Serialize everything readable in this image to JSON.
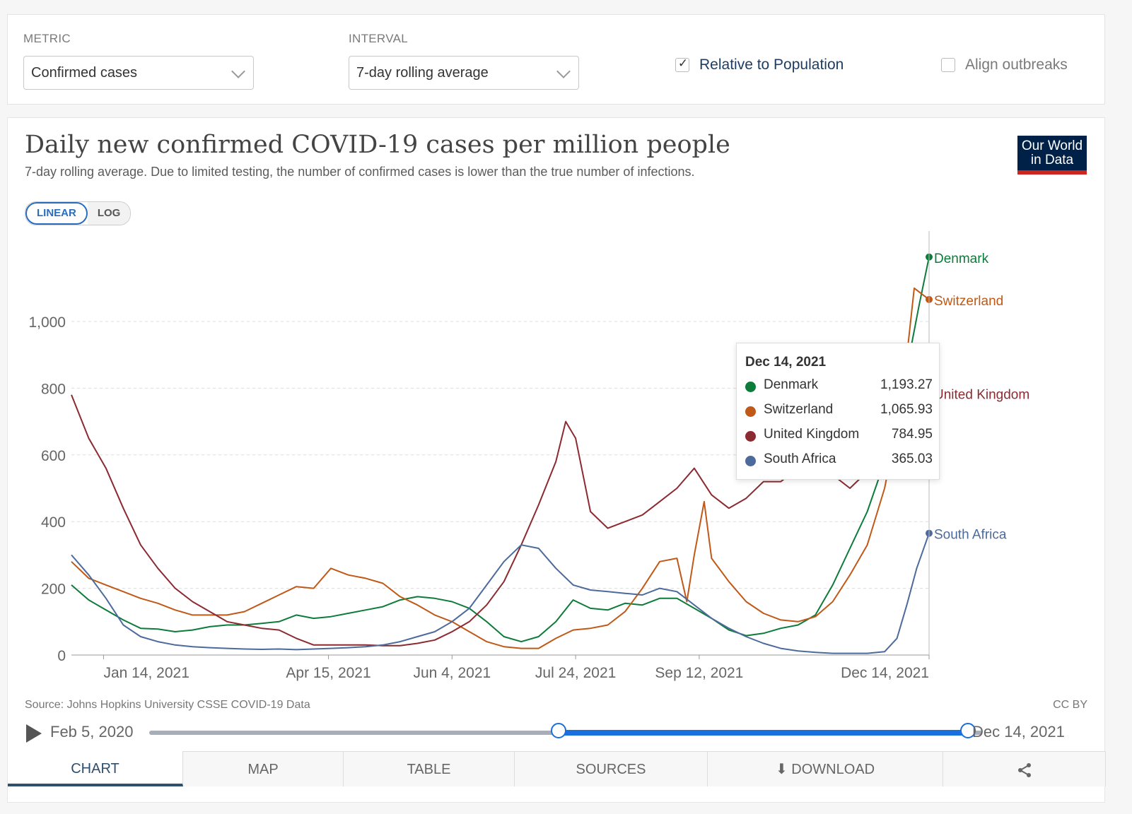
{
  "controls": {
    "metric_label": "METRIC",
    "metric_value": "Confirmed cases",
    "interval_label": "INTERVAL",
    "interval_value": "7-day rolling average",
    "relative_label": "Relative to Population",
    "relative_checked": "✓",
    "align_label": "Align outbreaks"
  },
  "header": {
    "title": "Daily new confirmed COVID-19 cases per million people",
    "subtitle": "7-day rolling average. Due to limited testing, the number of confirmed cases is lower than the true number of infections.",
    "logo_line1": "Our World",
    "logo_line2": "in Data"
  },
  "scale": {
    "linear": "LINEAR",
    "log": "LOG"
  },
  "tooltip": {
    "date": "Dec 14, 2021",
    "rows": [
      {
        "name": "Denmark",
        "value": "1,193.27",
        "color": "#0d7b3a"
      },
      {
        "name": "Switzerland",
        "value": "1,065.93",
        "color": "#c05917"
      },
      {
        "name": "United Kingdom",
        "value": "784.95",
        "color": "#8c2a31"
      },
      {
        "name": "South Africa",
        "value": "365.03",
        "color": "#4c6a9c"
      }
    ]
  },
  "footer": {
    "source": "Source: Johns Hopkins University CSSE COVID-19 Data",
    "license": "CC BY"
  },
  "timeline": {
    "start_label": "Feb 5, 2020",
    "end_label": "Dec 14, 2021",
    "window_start_fraction": 0.5,
    "window_end_fraction": 1.0
  },
  "tabs": {
    "chart": "CHART",
    "map": "MAP",
    "table": "TABLE",
    "sources": "SOURCES",
    "download": "DOWNLOAD"
  },
  "chart_data": {
    "type": "line",
    "title": "Daily new confirmed COVID-19 cases per million people",
    "subtitle": "7-day rolling average. Due to limited testing, the number of confirmed cases is lower than the true number of infections.",
    "x_range": [
      "2021-01-01",
      "2021-12-14"
    ],
    "ylim": [
      0,
      1250
    ],
    "y_ticks": [
      0,
      200,
      400,
      600,
      800,
      1000
    ],
    "y_tick_labels": [
      "0",
      "200",
      "400",
      "600",
      "800",
      "1,000"
    ],
    "x_ticks": [
      "2021-01-14",
      "2021-04-15",
      "2021-06-04",
      "2021-07-24",
      "2021-09-12",
      "2021-12-14"
    ],
    "x_tick_labels": [
      "Jan 14, 2021",
      "Apr 15, 2021",
      "Jun 4, 2021",
      "Jul 24, 2021",
      "Sep 12, 2021",
      "Dec 14, 2021"
    ],
    "grid": "horizontal dashed",
    "legend": "line-end labels",
    "series": [
      {
        "name": "Denmark",
        "color": "#0d7b3a",
        "points": [
          [
            "2021-01-01",
            210
          ],
          [
            "2021-01-08",
            165
          ],
          [
            "2021-01-15",
            135
          ],
          [
            "2021-01-22",
            105
          ],
          [
            "2021-01-29",
            80
          ],
          [
            "2021-02-05",
            78
          ],
          [
            "2021-02-12",
            70
          ],
          [
            "2021-02-19",
            75
          ],
          [
            "2021-02-26",
            85
          ],
          [
            "2021-03-05",
            90
          ],
          [
            "2021-03-12",
            90
          ],
          [
            "2021-03-19",
            95
          ],
          [
            "2021-03-26",
            100
          ],
          [
            "2021-04-02",
            120
          ],
          [
            "2021-04-09",
            110
          ],
          [
            "2021-04-16",
            115
          ],
          [
            "2021-04-23",
            125
          ],
          [
            "2021-04-30",
            135
          ],
          [
            "2021-05-07",
            145
          ],
          [
            "2021-05-14",
            165
          ],
          [
            "2021-05-21",
            175
          ],
          [
            "2021-05-28",
            170
          ],
          [
            "2021-06-04",
            160
          ],
          [
            "2021-06-11",
            140
          ],
          [
            "2021-06-18",
            100
          ],
          [
            "2021-06-25",
            55
          ],
          [
            "2021-07-02",
            40
          ],
          [
            "2021-07-09",
            55
          ],
          [
            "2021-07-16",
            100
          ],
          [
            "2021-07-23",
            165
          ],
          [
            "2021-07-30",
            140
          ],
          [
            "2021-08-06",
            135
          ],
          [
            "2021-08-13",
            155
          ],
          [
            "2021-08-20",
            150
          ],
          [
            "2021-08-27",
            170
          ],
          [
            "2021-09-03",
            170
          ],
          [
            "2021-09-10",
            140
          ],
          [
            "2021-09-17",
            110
          ],
          [
            "2021-09-24",
            75
          ],
          [
            "2021-10-01",
            58
          ],
          [
            "2021-10-08",
            65
          ],
          [
            "2021-10-15",
            80
          ],
          [
            "2021-10-22",
            90
          ],
          [
            "2021-10-29",
            120
          ],
          [
            "2021-11-05",
            210
          ],
          [
            "2021-11-12",
            320
          ],
          [
            "2021-11-19",
            430
          ],
          [
            "2021-11-26",
            580
          ],
          [
            "2021-12-03",
            780
          ],
          [
            "2021-12-10",
            1050
          ],
          [
            "2021-12-14",
            1193.27
          ]
        ]
      },
      {
        "name": "Switzerland",
        "color": "#c05917",
        "points": [
          [
            "2021-01-01",
            280
          ],
          [
            "2021-01-08",
            230
          ],
          [
            "2021-01-15",
            210
          ],
          [
            "2021-01-22",
            190
          ],
          [
            "2021-01-29",
            170
          ],
          [
            "2021-02-05",
            155
          ],
          [
            "2021-02-12",
            135
          ],
          [
            "2021-02-19",
            120
          ],
          [
            "2021-02-26",
            120
          ],
          [
            "2021-03-05",
            120
          ],
          [
            "2021-03-12",
            130
          ],
          [
            "2021-03-19",
            155
          ],
          [
            "2021-03-26",
            180
          ],
          [
            "2021-04-02",
            205
          ],
          [
            "2021-04-09",
            200
          ],
          [
            "2021-04-16",
            260
          ],
          [
            "2021-04-23",
            240
          ],
          [
            "2021-04-30",
            230
          ],
          [
            "2021-05-07",
            215
          ],
          [
            "2021-05-14",
            175
          ],
          [
            "2021-05-21",
            150
          ],
          [
            "2021-05-28",
            120
          ],
          [
            "2021-06-04",
            100
          ],
          [
            "2021-06-11",
            70
          ],
          [
            "2021-06-18",
            40
          ],
          [
            "2021-06-25",
            25
          ],
          [
            "2021-07-02",
            20
          ],
          [
            "2021-07-09",
            20
          ],
          [
            "2021-07-16",
            50
          ],
          [
            "2021-07-23",
            75
          ],
          [
            "2021-07-30",
            80
          ],
          [
            "2021-08-06",
            90
          ],
          [
            "2021-08-13",
            130
          ],
          [
            "2021-08-20",
            200
          ],
          [
            "2021-08-27",
            280
          ],
          [
            "2021-09-03",
            290
          ],
          [
            "2021-09-07",
            160
          ],
          [
            "2021-09-10",
            300
          ],
          [
            "2021-09-14",
            460
          ],
          [
            "2021-09-17",
            290
          ],
          [
            "2021-09-24",
            220
          ],
          [
            "2021-10-01",
            160
          ],
          [
            "2021-10-08",
            125
          ],
          [
            "2021-10-15",
            105
          ],
          [
            "2021-10-22",
            100
          ],
          [
            "2021-10-29",
            115
          ],
          [
            "2021-11-05",
            160
          ],
          [
            "2021-11-12",
            240
          ],
          [
            "2021-11-19",
            330
          ],
          [
            "2021-11-26",
            500
          ],
          [
            "2021-12-03",
            760
          ],
          [
            "2021-12-08",
            1100
          ],
          [
            "2021-12-14",
            1065.93
          ]
        ]
      },
      {
        "name": "United Kingdom",
        "color": "#8c2a31",
        "points": [
          [
            "2021-01-01",
            780
          ],
          [
            "2021-01-08",
            650
          ],
          [
            "2021-01-15",
            560
          ],
          [
            "2021-01-22",
            440
          ],
          [
            "2021-01-29",
            330
          ],
          [
            "2021-02-05",
            260
          ],
          [
            "2021-02-12",
            200
          ],
          [
            "2021-02-19",
            160
          ],
          [
            "2021-02-26",
            130
          ],
          [
            "2021-03-05",
            100
          ],
          [
            "2021-03-12",
            90
          ],
          [
            "2021-03-19",
            80
          ],
          [
            "2021-03-26",
            75
          ],
          [
            "2021-04-02",
            50
          ],
          [
            "2021-04-09",
            30
          ],
          [
            "2021-04-16",
            30
          ],
          [
            "2021-04-23",
            30
          ],
          [
            "2021-04-30",
            30
          ],
          [
            "2021-05-07",
            28
          ],
          [
            "2021-05-14",
            28
          ],
          [
            "2021-05-21",
            35
          ],
          [
            "2021-05-28",
            45
          ],
          [
            "2021-06-04",
            70
          ],
          [
            "2021-06-11",
            100
          ],
          [
            "2021-06-18",
            150
          ],
          [
            "2021-06-25",
            220
          ],
          [
            "2021-07-02",
            330
          ],
          [
            "2021-07-09",
            450
          ],
          [
            "2021-07-16",
            580
          ],
          [
            "2021-07-20",
            700
          ],
          [
            "2021-07-24",
            650
          ],
          [
            "2021-07-30",
            430
          ],
          [
            "2021-08-06",
            380
          ],
          [
            "2021-08-13",
            400
          ],
          [
            "2021-08-20",
            420
          ],
          [
            "2021-08-27",
            460
          ],
          [
            "2021-09-03",
            500
          ],
          [
            "2021-09-10",
            560
          ],
          [
            "2021-09-17",
            480
          ],
          [
            "2021-09-24",
            440
          ],
          [
            "2021-10-01",
            470
          ],
          [
            "2021-10-08",
            520
          ],
          [
            "2021-10-15",
            520
          ],
          [
            "2021-10-22",
            560
          ],
          [
            "2021-10-29",
            570
          ],
          [
            "2021-11-05",
            540
          ],
          [
            "2021-11-12",
            500
          ],
          [
            "2021-11-19",
            550
          ],
          [
            "2021-11-26",
            560
          ],
          [
            "2021-12-03",
            620
          ],
          [
            "2021-12-10",
            700
          ],
          [
            "2021-12-14",
            784.95
          ]
        ]
      },
      {
        "name": "South Africa",
        "color": "#4c6a9c",
        "points": [
          [
            "2021-01-01",
            300
          ],
          [
            "2021-01-08",
            240
          ],
          [
            "2021-01-15",
            170
          ],
          [
            "2021-01-22",
            90
          ],
          [
            "2021-01-29",
            55
          ],
          [
            "2021-02-05",
            40
          ],
          [
            "2021-02-12",
            30
          ],
          [
            "2021-02-19",
            25
          ],
          [
            "2021-02-26",
            22
          ],
          [
            "2021-03-05",
            20
          ],
          [
            "2021-03-12",
            18
          ],
          [
            "2021-03-19",
            17
          ],
          [
            "2021-03-26",
            18
          ],
          [
            "2021-04-02",
            16
          ],
          [
            "2021-04-09",
            18
          ],
          [
            "2021-04-16",
            20
          ],
          [
            "2021-04-23",
            22
          ],
          [
            "2021-04-30",
            25
          ],
          [
            "2021-05-07",
            30
          ],
          [
            "2021-05-14",
            40
          ],
          [
            "2021-05-21",
            55
          ],
          [
            "2021-05-28",
            70
          ],
          [
            "2021-06-04",
            100
          ],
          [
            "2021-06-11",
            140
          ],
          [
            "2021-06-18",
            210
          ],
          [
            "2021-06-25",
            280
          ],
          [
            "2021-07-02",
            330
          ],
          [
            "2021-07-09",
            320
          ],
          [
            "2021-07-16",
            260
          ],
          [
            "2021-07-23",
            210
          ],
          [
            "2021-07-30",
            195
          ],
          [
            "2021-08-06",
            190
          ],
          [
            "2021-08-13",
            185
          ],
          [
            "2021-08-20",
            180
          ],
          [
            "2021-08-27",
            200
          ],
          [
            "2021-09-03",
            190
          ],
          [
            "2021-09-10",
            150
          ],
          [
            "2021-09-17",
            110
          ],
          [
            "2021-09-24",
            80
          ],
          [
            "2021-10-01",
            55
          ],
          [
            "2021-10-08",
            35
          ],
          [
            "2021-10-15",
            20
          ],
          [
            "2021-10-22",
            12
          ],
          [
            "2021-10-29",
            8
          ],
          [
            "2021-11-05",
            5
          ],
          [
            "2021-11-12",
            5
          ],
          [
            "2021-11-19",
            5
          ],
          [
            "2021-11-26",
            10
          ],
          [
            "2021-12-01",
            50
          ],
          [
            "2021-12-05",
            150
          ],
          [
            "2021-12-09",
            260
          ],
          [
            "2021-12-14",
            365.03
          ]
        ]
      }
    ]
  }
}
